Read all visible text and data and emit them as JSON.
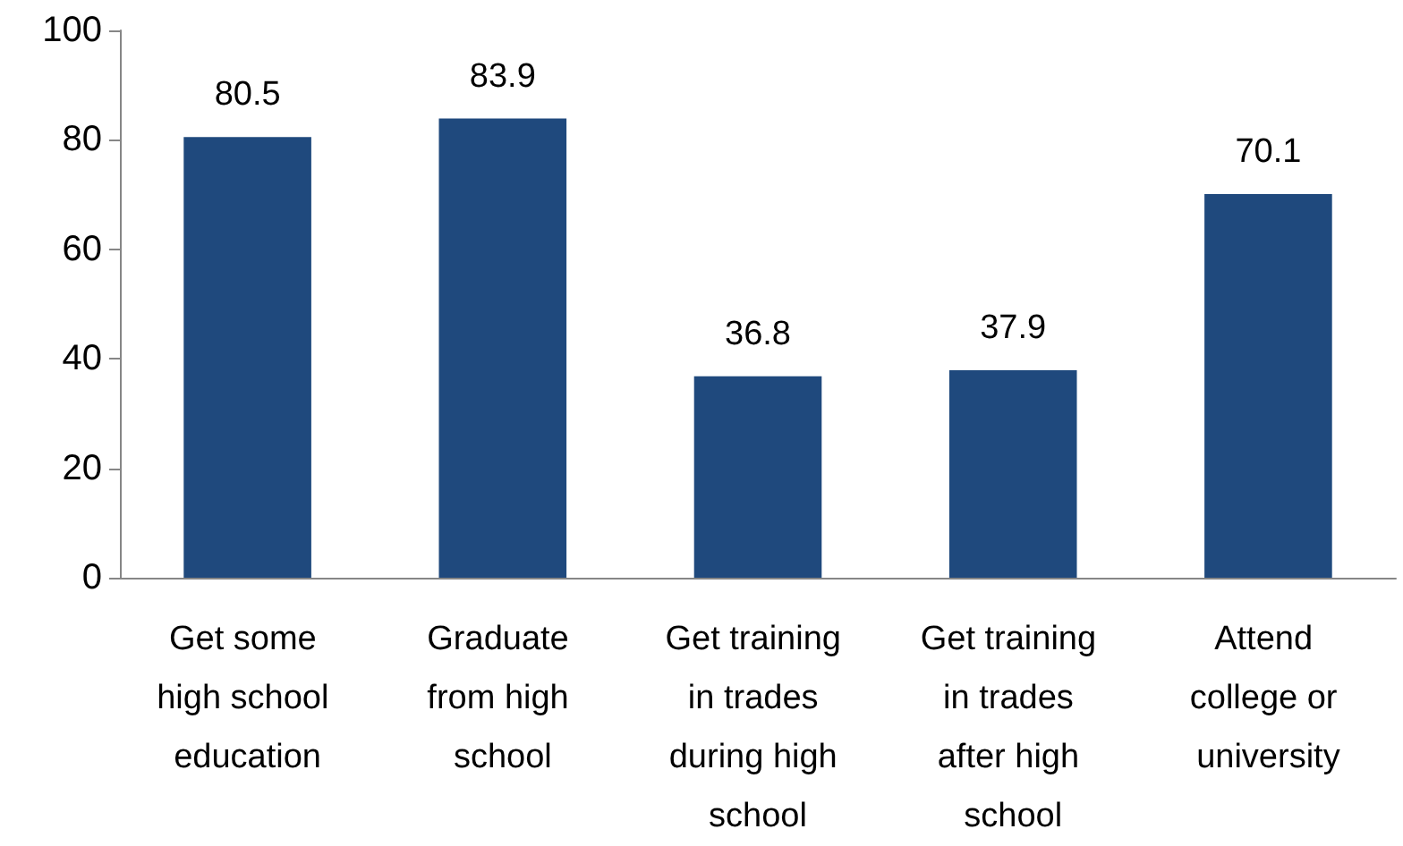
{
  "chart_data": {
    "type": "bar",
    "categories": [
      "Get some high school education",
      "Graduate from high school",
      "Get training in trades during high school",
      "Get training in trades after high school",
      "Attend college or university"
    ],
    "values": [
      80.5,
      83.9,
      36.8,
      37.9,
      70.1
    ],
    "color": "#1f497d",
    "ylim": [
      0,
      100
    ],
    "yticks": [
      0,
      20,
      40,
      60,
      80,
      100
    ],
    "grid": false,
    "data_labels": true
  }
}
